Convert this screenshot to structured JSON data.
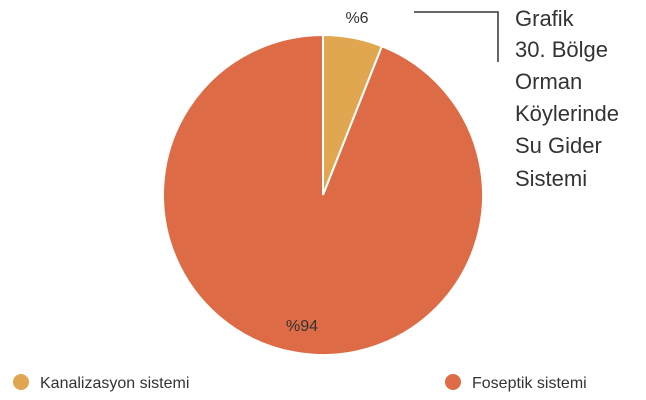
{
  "chart_data": {
    "type": "pie",
    "title_lines": [
      "Grafik",
      "30. Bölge",
      "Orman",
      "Köylerinde",
      "Su Gider",
      "Sistemi"
    ],
    "slices": [
      {
        "label": "Kanalizasyon sistemi",
        "value": 6,
        "data_label": "%6",
        "color": "#E0A650"
      },
      {
        "label": "Foseptik sistemi",
        "value": 94,
        "data_label": "%94",
        "color": "#DD6C46"
      }
    ],
    "legend_position": "bottom"
  }
}
